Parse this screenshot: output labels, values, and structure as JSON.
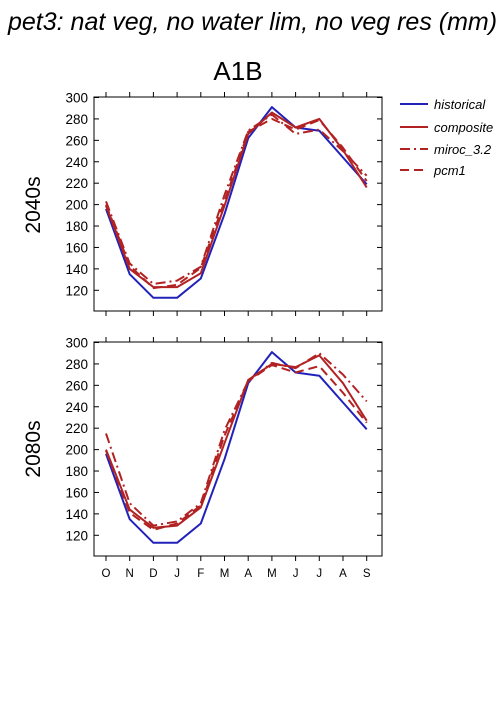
{
  "title": "pet3: nat veg, no water lim, no veg res (mm)",
  "scenario_label": "A1B",
  "colors": {
    "historical": "#2222bb",
    "composite": "#b22222",
    "miroc_3.2": "#b22222",
    "pcm1": "#b22222"
  },
  "legend": [
    {
      "name": "historical",
      "dash": "solid"
    },
    {
      "name": "composite",
      "dash": "solid"
    },
    {
      "name": "miroc_3.2",
      "dash": "dashdot"
    },
    {
      "name": "pcm1",
      "dash": "dashed"
    }
  ],
  "chart_data": [
    {
      "type": "line",
      "row_label": "2040s",
      "x": [
        "O",
        "N",
        "D",
        "J",
        "F",
        "M",
        "A",
        "M",
        "J",
        "J",
        "A",
        "S"
      ],
      "ylim": [
        110,
        300
      ],
      "yticks": [
        120,
        140,
        160,
        180,
        200,
        220,
        240,
        260,
        280,
        300
      ],
      "series": [
        {
          "name": "historical",
          "values": [
            196,
            135,
            113,
            113,
            131,
            191,
            262,
            291,
            272,
            269,
            244,
            219
          ]
        },
        {
          "name": "composite",
          "values": [
            199,
            140,
            123,
            123,
            136,
            199,
            266,
            286,
            272,
            280,
            251,
            216
          ]
        },
        {
          "name": "miroc_3.2",
          "values": [
            203,
            145,
            126,
            129,
            142,
            209,
            269,
            284,
            266,
            270,
            250,
            227
          ]
        },
        {
          "name": "pcm1",
          "values": [
            200,
            143,
            122,
            125,
            141,
            203,
            268,
            280,
            270,
            279,
            253,
            222
          ]
        }
      ]
    },
    {
      "type": "line",
      "row_label": "2080s",
      "x": [
        "O",
        "N",
        "D",
        "J",
        "F",
        "M",
        "A",
        "M",
        "J",
        "J",
        "A",
        "S"
      ],
      "ylim": [
        110,
        300
      ],
      "yticks": [
        120,
        140,
        160,
        180,
        200,
        220,
        240,
        260,
        280,
        300
      ],
      "series": [
        {
          "name": "historical",
          "values": [
            196,
            135,
            113,
            113,
            131,
            191,
            262,
            291,
            272,
            269,
            244,
            219
          ]
        },
        {
          "name": "composite",
          "values": [
            200,
            144,
            127,
            129,
            146,
            206,
            265,
            280,
            277,
            288,
            262,
            227
          ]
        },
        {
          "name": "miroc_3.2",
          "values": [
            215,
            150,
            129,
            133,
            150,
            218,
            264,
            281,
            276,
            290,
            270,
            245
          ]
        },
        {
          "name": "pcm1",
          "values": [
            199,
            141,
            125,
            131,
            148,
            213,
            264,
            279,
            272,
            278,
            253,
            225
          ]
        }
      ]
    }
  ]
}
